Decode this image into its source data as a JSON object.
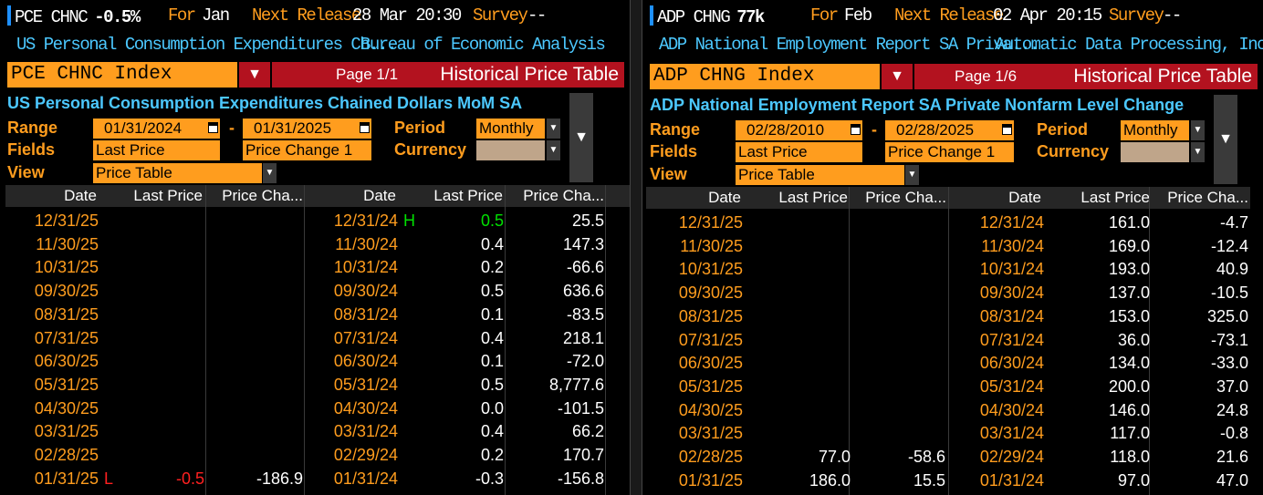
{
  "left": {
    "ticker": "PCE CHNC",
    "change": "-0.5%",
    "for_label": "For",
    "for_value": "Jan",
    "next_release_label": "Next Release",
    "next_release_value": "28 Mar 20:30",
    "survey_label": "Survey",
    "survey_value": "--",
    "desc_short": "US Personal Consumption Expenditures Ch...",
    "source": "Bureau of Economic Analysis",
    "index_field": "PCE CHNC Index",
    "page": "Page 1/1",
    "function_title": "Historical Price Table",
    "full_title": "US Personal Consumption Expenditures Chained Dollars MoM SA",
    "range_label": "Range",
    "range_start": "01/31/2024",
    "range_dash": "-",
    "range_end": "01/31/2025",
    "period_label": "Period",
    "period_value": "Monthly",
    "fields_label": "Fields",
    "field1": "Last Price",
    "field2": "Price Change 1",
    "currency_label": "Currency",
    "view_label": "View",
    "view_value": "Price Table",
    "headers": [
      "Date",
      "Last Price",
      "Price Cha...",
      "Date",
      "Last Price",
      "Price Cha..."
    ],
    "left_rows": [
      {
        "date": "12/31/25",
        "mark": "",
        "price": "",
        "chg": ""
      },
      {
        "date": "11/30/25",
        "mark": "",
        "price": "",
        "chg": ""
      },
      {
        "date": "10/31/25",
        "mark": "",
        "price": "",
        "chg": ""
      },
      {
        "date": "09/30/25",
        "mark": "",
        "price": "",
        "chg": ""
      },
      {
        "date": "08/31/25",
        "mark": "",
        "price": "",
        "chg": ""
      },
      {
        "date": "07/31/25",
        "mark": "",
        "price": "",
        "chg": ""
      },
      {
        "date": "06/30/25",
        "mark": "",
        "price": "",
        "chg": ""
      },
      {
        "date": "05/31/25",
        "mark": "",
        "price": "",
        "chg": ""
      },
      {
        "date": "04/30/25",
        "mark": "",
        "price": "",
        "chg": ""
      },
      {
        "date": "03/31/25",
        "mark": "",
        "price": "",
        "chg": ""
      },
      {
        "date": "02/28/25",
        "mark": "",
        "price": "",
        "chg": ""
      },
      {
        "date": "01/31/25",
        "mark": "L",
        "price": "-0.5",
        "chg": "-186.9"
      }
    ],
    "right_rows": [
      {
        "date": "12/31/24",
        "mark": "H",
        "price": "0.5",
        "chg": "25.5"
      },
      {
        "date": "11/30/24",
        "mark": "",
        "price": "0.4",
        "chg": "147.3"
      },
      {
        "date": "10/31/24",
        "mark": "",
        "price": "0.2",
        "chg": "-66.6"
      },
      {
        "date": "09/30/24",
        "mark": "",
        "price": "0.5",
        "chg": "636.6"
      },
      {
        "date": "08/31/24",
        "mark": "",
        "price": "0.1",
        "chg": "-83.5"
      },
      {
        "date": "07/31/24",
        "mark": "",
        "price": "0.4",
        "chg": "218.1"
      },
      {
        "date": "06/30/24",
        "mark": "",
        "price": "0.1",
        "chg": "-72.0"
      },
      {
        "date": "05/31/24",
        "mark": "",
        "price": "0.5",
        "chg": "8,777.6"
      },
      {
        "date": "04/30/24",
        "mark": "",
        "price": "0.0",
        "chg": "-101.5"
      },
      {
        "date": "03/31/24",
        "mark": "",
        "price": "0.4",
        "chg": "66.2"
      },
      {
        "date": "02/29/24",
        "mark": "",
        "price": "0.2",
        "chg": "170.7"
      },
      {
        "date": "01/31/24",
        "mark": "",
        "price": "-0.3",
        "chg": "-156.8"
      }
    ]
  },
  "right": {
    "ticker": "ADP CHNG",
    "change": "77k",
    "for_label": "For",
    "for_value": "Feb",
    "next_release_label": "Next Release",
    "next_release_value": "02 Apr 20:15",
    "survey_label": "Survey",
    "survey_value": "--",
    "desc_short": "ADP National Employment Report SA Priva...",
    "source": "Automatic Data Processing, Inc.",
    "index_field": "ADP CHNG Index",
    "page": "Page 1/6",
    "function_title": "Historical Price Table",
    "full_title": "ADP National Employment Report SA Private Nonfarm Level Change",
    "range_label": "Range",
    "range_start": "02/28/2010",
    "range_dash": "-",
    "range_end": "02/28/2025",
    "period_label": "Period",
    "period_value": "Monthly",
    "fields_label": "Fields",
    "field1": "Last Price",
    "field2": "Price Change 1",
    "currency_label": "Currency",
    "view_label": "View",
    "view_value": "Price Table",
    "headers": [
      "Date",
      "Last Price",
      "Price Cha...",
      "Date",
      "Last Price",
      "Price Cha..."
    ],
    "left_rows": [
      {
        "date": "12/31/25",
        "mark": "",
        "price": "",
        "chg": ""
      },
      {
        "date": "11/30/25",
        "mark": "",
        "price": "",
        "chg": ""
      },
      {
        "date": "10/31/25",
        "mark": "",
        "price": "",
        "chg": ""
      },
      {
        "date": "09/30/25",
        "mark": "",
        "price": "",
        "chg": ""
      },
      {
        "date": "08/31/25",
        "mark": "",
        "price": "",
        "chg": ""
      },
      {
        "date": "07/31/25",
        "mark": "",
        "price": "",
        "chg": ""
      },
      {
        "date": "06/30/25",
        "mark": "",
        "price": "",
        "chg": ""
      },
      {
        "date": "05/31/25",
        "mark": "",
        "price": "",
        "chg": ""
      },
      {
        "date": "04/30/25",
        "mark": "",
        "price": "",
        "chg": ""
      },
      {
        "date": "03/31/25",
        "mark": "",
        "price": "",
        "chg": ""
      },
      {
        "date": "02/28/25",
        "mark": "",
        "price": "77.0",
        "chg": "-58.6"
      },
      {
        "date": "01/31/25",
        "mark": "",
        "price": "186.0",
        "chg": "15.5"
      }
    ],
    "right_rows": [
      {
        "date": "12/31/24",
        "mark": "",
        "price": "161.0",
        "chg": "-4.7"
      },
      {
        "date": "11/30/24",
        "mark": "",
        "price": "169.0",
        "chg": "-12.4"
      },
      {
        "date": "10/31/24",
        "mark": "",
        "price": "193.0",
        "chg": "40.9"
      },
      {
        "date": "09/30/24",
        "mark": "",
        "price": "137.0",
        "chg": "-10.5"
      },
      {
        "date": "08/31/24",
        "mark": "",
        "price": "153.0",
        "chg": "325.0"
      },
      {
        "date": "07/31/24",
        "mark": "",
        "price": "36.0",
        "chg": "-73.1"
      },
      {
        "date": "06/30/24",
        "mark": "",
        "price": "134.0",
        "chg": "-33.0"
      },
      {
        "date": "05/31/24",
        "mark": "",
        "price": "200.0",
        "chg": "37.0"
      },
      {
        "date": "04/30/24",
        "mark": "",
        "price": "146.0",
        "chg": "24.8"
      },
      {
        "date": "03/31/24",
        "mark": "",
        "price": "117.0",
        "chg": "-0.8"
      },
      {
        "date": "02/29/24",
        "mark": "",
        "price": "118.0",
        "chg": "21.6"
      },
      {
        "date": "01/31/24",
        "mark": "",
        "price": "97.0",
        "chg": "47.0"
      }
    ]
  },
  "colors": {
    "amber": "#ff9d1e",
    "cyan": "#4cc8ff",
    "red": "#b3121f",
    "high": "#00e000",
    "low": "#ff2020"
  },
  "icons": {
    "dropdown": "chevron-down-icon",
    "calendar": "calendar-icon"
  }
}
